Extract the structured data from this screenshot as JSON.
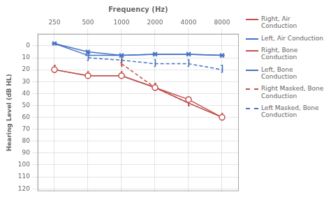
{
  "chart_data": {
    "type": "line",
    "xlabel": "Frequency (Hz)",
    "ylabel": "Hearing Level (dB HL)",
    "categories": [
      "250",
      "500",
      "1000",
      "2000",
      "4000",
      "8000"
    ],
    "ylim": [
      122,
      -10
    ],
    "yticks": [
      0,
      10,
      20,
      30,
      40,
      50,
      60,
      70,
      80,
      90,
      100,
      110,
      120
    ],
    "grid": true,
    "legend": "right",
    "series": [
      {
        "name": "Right, Air\nConduction",
        "color": "#c0504d",
        "marker": "circle",
        "line_style": "solid",
        "values": [
          20,
          25,
          25,
          35,
          45,
          60
        ]
      },
      {
        "name": "Left, Air Conduction",
        "color": "#4472c4",
        "marker": "x",
        "line_style": "solid",
        "values": [
          -2,
          5,
          8,
          7,
          7,
          8
        ]
      },
      {
        "name": "Right, Bone\nConduction",
        "color": "#c0504d",
        "marker": "left_bracket",
        "line_style": "solid",
        "values": [
          20,
          25,
          25,
          35,
          48,
          60
        ]
      },
      {
        "name": "Left, Bone\nConduction",
        "color": "#4472c4",
        "marker": "dash",
        "line_style": "solid",
        "values": [
          -2,
          8,
          8,
          7,
          7,
          8
        ]
      },
      {
        "name": "Right Masked, Bone\nConduction",
        "color": "#c0504d",
        "marker": "left_bracket",
        "line_style": "dashed",
        "values": [
          null,
          null,
          15,
          35,
          48,
          null
        ]
      },
      {
        "name": "Left Masked, Bone\nConduction",
        "color": "#4472c4",
        "marker": "right_bracket",
        "line_style": "dashed",
        "values": [
          null,
          10,
          12,
          15,
          15,
          20
        ]
      }
    ]
  }
}
